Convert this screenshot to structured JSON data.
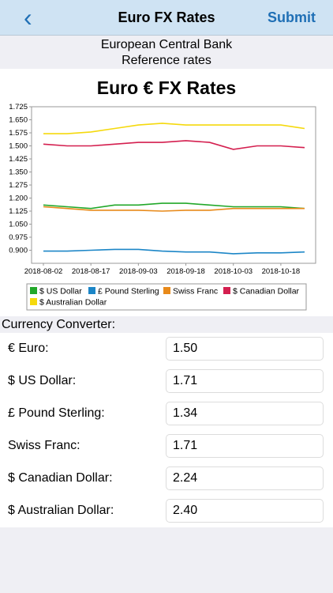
{
  "navbar": {
    "back_icon": "chevron-left-icon",
    "back_glyph": "‹",
    "title": "Euro FX Rates",
    "submit_label": "Submit"
  },
  "header": {
    "line1": "European Central Bank",
    "line2": "Reference rates"
  },
  "colors": {
    "accent": "#1f6fb5",
    "navbar_bg": "#cfe3f3"
  },
  "chart_data": {
    "type": "line",
    "title": "Euro € FX Rates",
    "xlabel": "",
    "ylabel": "",
    "ylim": [
      0.825,
      1.725
    ],
    "yticks": [
      "1.725",
      "1.650",
      "1.575",
      "1.500",
      "1.425",
      "1.350",
      "1.275",
      "1.200",
      "1.125",
      "1.050",
      "0.975",
      "0.900"
    ],
    "xticks": [
      "2018-08-02",
      "2018-08-17",
      "2018-09-03",
      "2018-09-18",
      "2018-10-03",
      "2018-10-18"
    ],
    "x": [
      "2018-08-02",
      "2018-08-09",
      "2018-08-17",
      "2018-08-24",
      "2018-09-03",
      "2018-09-10",
      "2018-09-18",
      "2018-09-25",
      "2018-10-03",
      "2018-10-10",
      "2018-10-18",
      "2018-10-26"
    ],
    "grid": false,
    "legend_position": "bottom",
    "series": [
      {
        "name": "$ US Dollar",
        "color": "#22a82a",
        "values": [
          1.16,
          1.15,
          1.14,
          1.16,
          1.16,
          1.17,
          1.17,
          1.16,
          1.15,
          1.15,
          1.15,
          1.14
        ]
      },
      {
        "name": "£ Pound Sterling",
        "color": "#1c86c7",
        "values": [
          0.895,
          0.895,
          0.9,
          0.905,
          0.905,
          0.895,
          0.89,
          0.89,
          0.88,
          0.885,
          0.885,
          0.89
        ]
      },
      {
        "name": "Swiss Franc",
        "color": "#e88a1a",
        "values": [
          1.15,
          1.14,
          1.13,
          1.13,
          1.13,
          1.125,
          1.13,
          1.13,
          1.14,
          1.14,
          1.14,
          1.14
        ]
      },
      {
        "name": "$ Canadian Dollar",
        "color": "#d41f4f",
        "values": [
          1.51,
          1.5,
          1.5,
          1.51,
          1.52,
          1.52,
          1.53,
          1.52,
          1.48,
          1.5,
          1.5,
          1.49
        ]
      },
      {
        "name": "$ Australian Dollar",
        "color": "#f5d90d",
        "values": [
          1.57,
          1.57,
          1.58,
          1.6,
          1.62,
          1.63,
          1.62,
          1.62,
          1.62,
          1.62,
          1.62,
          1.6
        ]
      }
    ]
  },
  "converter": {
    "label": "Currency Converter:",
    "rows": [
      {
        "label": "€ Euro:",
        "value": "1.50"
      },
      {
        "label": "$ US Dollar:",
        "value": "1.71"
      },
      {
        "label": "£ Pound Sterling:",
        "value": "1.34"
      },
      {
        "label": "Swiss Franc:",
        "value": "1.71"
      },
      {
        "label": "$ Canadian Dollar:",
        "value": "2.24"
      },
      {
        "label": "$ Australian Dollar:",
        "value": "2.40"
      }
    ]
  }
}
